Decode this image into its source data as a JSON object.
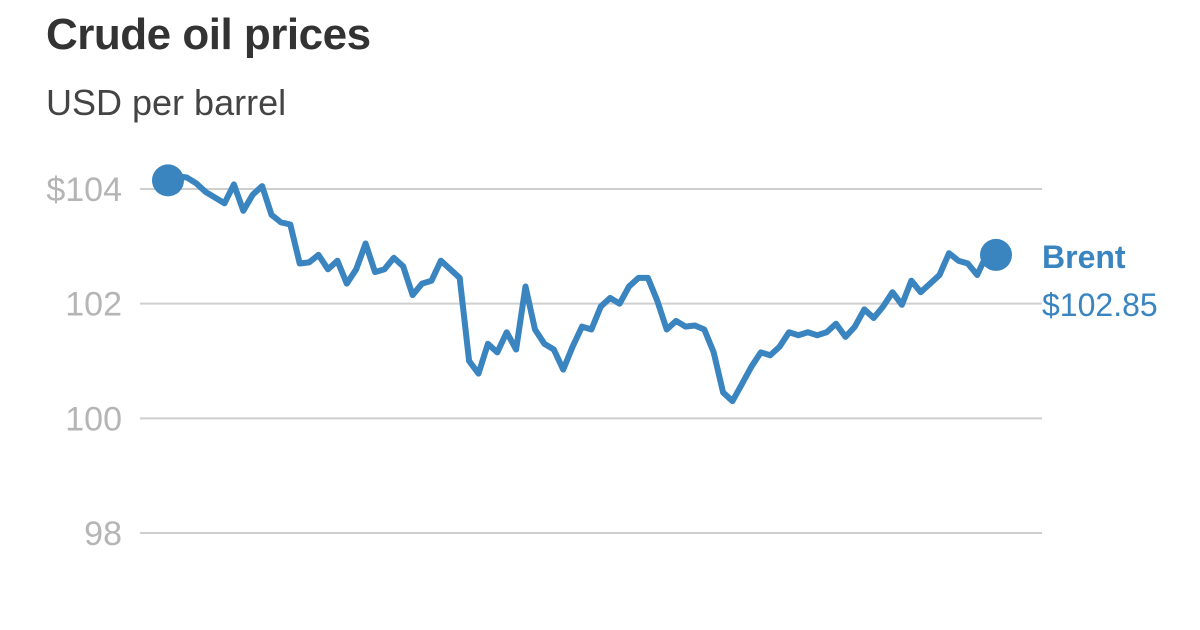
{
  "chart_data": {
    "type": "line",
    "title": "Crude oil prices",
    "subtitle": "USD per barrel",
    "xlabel": "",
    "ylabel": "",
    "ylim": [
      98,
      104
    ],
    "y_ticks": [
      {
        "value": 104,
        "label": "$104"
      },
      {
        "value": 102,
        "label": "102"
      },
      {
        "value": 100,
        "label": "100"
      },
      {
        "value": 98,
        "label": "98"
      }
    ],
    "grid": true,
    "line_color": "#3a84c0",
    "series": [
      {
        "name": "Brent",
        "end_label": "$102.85",
        "values": [
          104.15,
          104.22,
          104.2,
          104.1,
          103.95,
          103.85,
          103.75,
          104.08,
          103.62,
          103.9,
          104.05,
          103.55,
          103.42,
          103.38,
          102.7,
          102.72,
          102.85,
          102.6,
          102.75,
          102.35,
          102.6,
          103.05,
          102.55,
          102.6,
          102.8,
          102.65,
          102.15,
          102.35,
          102.4,
          102.75,
          102.6,
          102.45,
          101.0,
          100.78,
          101.3,
          101.15,
          101.5,
          101.2,
          102.3,
          101.55,
          101.3,
          101.2,
          100.85,
          101.25,
          101.6,
          101.55,
          101.95,
          102.1,
          102.0,
          102.3,
          102.45,
          102.45,
          102.05,
          101.55,
          101.7,
          101.6,
          101.62,
          101.55,
          101.15,
          100.45,
          100.3,
          100.6,
          100.9,
          101.15,
          101.1,
          101.25,
          101.5,
          101.45,
          101.5,
          101.45,
          101.5,
          101.65,
          101.42,
          101.6,
          101.9,
          101.75,
          101.95,
          102.2,
          101.98,
          102.4,
          102.2,
          102.35,
          102.5,
          102.88,
          102.75,
          102.7,
          102.5,
          102.85,
          102.85
        ]
      }
    ]
  }
}
